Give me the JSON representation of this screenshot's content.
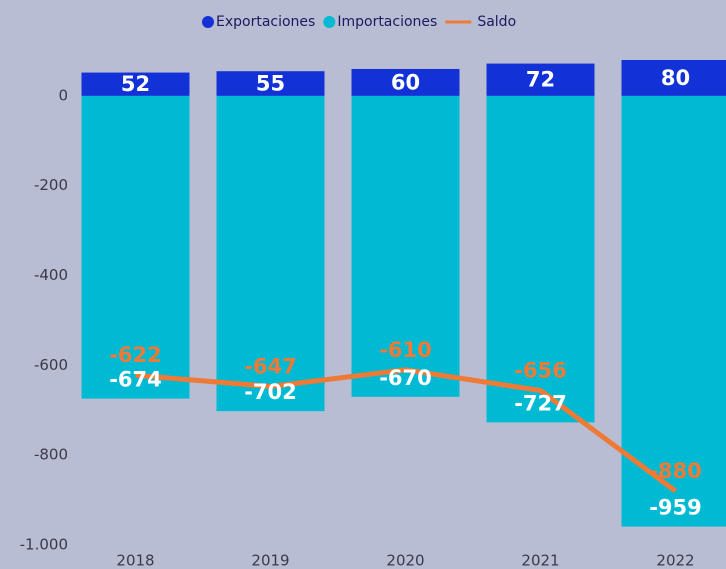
{
  "chart_data": {
    "type": "bar",
    "categories": [
      "2018",
      "2019",
      "2020",
      "2021",
      "2022"
    ],
    "series": [
      {
        "name": "Exportaciones",
        "color": "#1232d8",
        "values": [
          52,
          55,
          60,
          72,
          80
        ]
      },
      {
        "name": "Importaciones",
        "color": "#00bad4",
        "values": [
          -674,
          -702,
          -670,
          -727,
          -959
        ]
      },
      {
        "name": "Saldo",
        "type": "line",
        "color": "#ee7a35",
        "values": [
          -622,
          -647,
          -610,
          -656,
          -880
        ]
      }
    ],
    "ylim": [
      -1000,
      100
    ],
    "yticks": [
      0,
      -200,
      -400,
      -600,
      -800,
      {
        "value": -1000,
        "label": "-1.000"
      }
    ]
  }
}
